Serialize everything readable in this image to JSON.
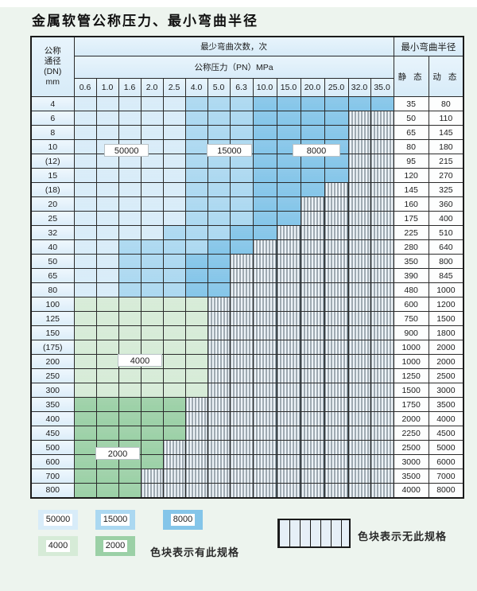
{
  "title": "金属软管公称压力、最小弯曲半径",
  "colors": {
    "s50": "#d8ecf9",
    "s15": "#abd8f1",
    "s8": "#84c5e9",
    "s4": "#d6ebd7",
    "s2": "#9bd0a6",
    "hatch_bg": "#edf3f8",
    "header_bg": "#ddeefa",
    "grid": "#2b2b2b"
  },
  "table": {
    "header": {
      "dn_label_lines": [
        "公称",
        "通径",
        "(DN)",
        "mm"
      ],
      "cycles_label": "最少弯曲次数，次",
      "radius_label": "最小弯曲半径",
      "pressure_label": "公称压力（PN）MPa",
      "static_label": "静 态",
      "dynamic_label": "动 态",
      "pressure_cols": [
        "0.6",
        "1.0",
        "1.6",
        "2.0",
        "2.5",
        "4.0",
        "5.0",
        "6.3",
        "10.0",
        "15.0",
        "20.0",
        "25.0",
        "32.0",
        "35.0"
      ]
    },
    "rows": [
      {
        "dn": "4",
        "static": "35",
        "dynamic": "80",
        "bands": [
          [
            "s50",
            0,
            4
          ],
          [
            "s15",
            5,
            7
          ],
          [
            "s8",
            8,
            13
          ]
        ],
        "hatch_from": -1
      },
      {
        "dn": "6",
        "static": "50",
        "dynamic": "110",
        "bands": [
          [
            "s50",
            0,
            4
          ],
          [
            "s15",
            5,
            7
          ],
          [
            "s8",
            8,
            11
          ]
        ],
        "hatch_from": 12
      },
      {
        "dn": "8",
        "static": "65",
        "dynamic": "145",
        "bands": [
          [
            "s50",
            0,
            4
          ],
          [
            "s15",
            5,
            7
          ],
          [
            "s8",
            8,
            11
          ]
        ],
        "hatch_from": 12
      },
      {
        "dn": "10",
        "static": "80",
        "dynamic": "180",
        "bands": [
          [
            "s50",
            0,
            4
          ],
          [
            "s15",
            5,
            7
          ],
          [
            "s8",
            8,
            11
          ]
        ],
        "hatch_from": 12
      },
      {
        "dn": "(12)",
        "static": "95",
        "dynamic": "215",
        "bands": [
          [
            "s50",
            0,
            4
          ],
          [
            "s15",
            5,
            7
          ],
          [
            "s8",
            8,
            11
          ]
        ],
        "hatch_from": 12
      },
      {
        "dn": "15",
        "static": "120",
        "dynamic": "270",
        "bands": [
          [
            "s50",
            0,
            4
          ],
          [
            "s15",
            5,
            7
          ],
          [
            "s8",
            8,
            11
          ]
        ],
        "hatch_from": 12
      },
      {
        "dn": "(18)",
        "static": "145",
        "dynamic": "325",
        "bands": [
          [
            "s50",
            0,
            4
          ],
          [
            "s15",
            5,
            7
          ],
          [
            "s8",
            8,
            10
          ]
        ],
        "hatch_from": 11
      },
      {
        "dn": "20",
        "static": "160",
        "dynamic": "360",
        "bands": [
          [
            "s50",
            0,
            4
          ],
          [
            "s15",
            5,
            7
          ],
          [
            "s8",
            8,
            9
          ]
        ],
        "hatch_from": 10
      },
      {
        "dn": "25",
        "static": "175",
        "dynamic": "400",
        "bands": [
          [
            "s50",
            0,
            4
          ],
          [
            "s15",
            5,
            7
          ],
          [
            "s8",
            8,
            9
          ]
        ],
        "hatch_from": 10
      },
      {
        "dn": "32",
        "static": "225",
        "dynamic": "510",
        "bands": [
          [
            "s50",
            0,
            3
          ],
          [
            "s15",
            4,
            6
          ],
          [
            "s8",
            7,
            8
          ]
        ],
        "hatch_from": 9
      },
      {
        "dn": "40",
        "static": "280",
        "dynamic": "640",
        "bands": [
          [
            "s50",
            0,
            1
          ],
          [
            "s15",
            2,
            5
          ],
          [
            "s8",
            6,
            7
          ]
        ],
        "hatch_from": 8
      },
      {
        "dn": "50",
        "static": "350",
        "dynamic": "800",
        "bands": [
          [
            "s50",
            0,
            1
          ],
          [
            "s15",
            2,
            4
          ],
          [
            "s8",
            5,
            6
          ]
        ],
        "hatch_from": 7
      },
      {
        "dn": "65",
        "static": "390",
        "dynamic": "845",
        "bands": [
          [
            "s50",
            0,
            1
          ],
          [
            "s15",
            2,
            4
          ],
          [
            "s8",
            5,
            6
          ]
        ],
        "hatch_from": 7
      },
      {
        "dn": "80",
        "static": "480",
        "dynamic": "1000",
        "bands": [
          [
            "s50",
            0,
            1
          ],
          [
            "s15",
            2,
            4
          ],
          [
            "s8",
            5,
            6
          ]
        ],
        "hatch_from": 7
      },
      {
        "dn": "100",
        "static": "600",
        "dynamic": "1200",
        "bands": [
          [
            "s4",
            0,
            5
          ]
        ],
        "hatch_from": 6
      },
      {
        "dn": "125",
        "static": "750",
        "dynamic": "1500",
        "bands": [
          [
            "s4",
            0,
            5
          ]
        ],
        "hatch_from": 6
      },
      {
        "dn": "150",
        "static": "900",
        "dynamic": "1800",
        "bands": [
          [
            "s4",
            0,
            5
          ]
        ],
        "hatch_from": 6
      },
      {
        "dn": "(175)",
        "static": "1000",
        "dynamic": "2000",
        "bands": [
          [
            "s4",
            0,
            5
          ]
        ],
        "hatch_from": 6
      },
      {
        "dn": "200",
        "static": "1000",
        "dynamic": "2000",
        "bands": [
          [
            "s4",
            0,
            5
          ]
        ],
        "hatch_from": 6
      },
      {
        "dn": "250",
        "static": "1250",
        "dynamic": "2500",
        "bands": [
          [
            "s4",
            0,
            5
          ]
        ],
        "hatch_from": 6
      },
      {
        "dn": "300",
        "static": "1500",
        "dynamic": "3000",
        "bands": [
          [
            "s4",
            0,
            5
          ]
        ],
        "hatch_from": 6
      },
      {
        "dn": "350",
        "static": "1750",
        "dynamic": "3500",
        "bands": [
          [
            "s2",
            0,
            4
          ]
        ],
        "hatch_from": 5
      },
      {
        "dn": "400",
        "static": "2000",
        "dynamic": "4000",
        "bands": [
          [
            "s2",
            0,
            4
          ]
        ],
        "hatch_from": 5
      },
      {
        "dn": "450",
        "static": "2250",
        "dynamic": "4500",
        "bands": [
          [
            "s2",
            0,
            4
          ]
        ],
        "hatch_from": 5
      },
      {
        "dn": "500",
        "static": "2500",
        "dynamic": "5000",
        "bands": [
          [
            "s2",
            0,
            3
          ]
        ],
        "hatch_from": 4
      },
      {
        "dn": "600",
        "static": "3000",
        "dynamic": "6000",
        "bands": [
          [
            "s2",
            0,
            3
          ]
        ],
        "hatch_from": 4
      },
      {
        "dn": "700",
        "static": "3500",
        "dynamic": "7000",
        "bands": [
          [
            "s2",
            0,
            2
          ]
        ],
        "hatch_from": 3
      },
      {
        "dn": "800",
        "static": "4000",
        "dynamic": "8000",
        "bands": [
          [
            "s2",
            0,
            2
          ]
        ],
        "hatch_from": 3
      }
    ],
    "region_labels": [
      {
        "text": "50000",
        "row_index": 3,
        "col": 2,
        "span": 2,
        "hoffset": -0.6,
        "voffset": 0.35
      },
      {
        "text": "15000",
        "row_index": 3,
        "col": 6,
        "span": 2,
        "hoffset": 0,
        "voffset": 0.35
      },
      {
        "text": "8000",
        "row_index": 3,
        "col": 9,
        "span": 2,
        "hoffset": 0.7,
        "voffset": 0.35
      },
      {
        "text": "4000",
        "row_index": 18,
        "col": 2,
        "span": 2,
        "hoffset": 0,
        "voffset": 0
      },
      {
        "text": "2000",
        "row_index": 24,
        "col": 1,
        "span": 2,
        "hoffset": 0,
        "voffset": 0.5
      }
    ]
  },
  "legend": {
    "items": [
      {
        "label": "50000",
        "color_key": "s50"
      },
      {
        "label": "15000",
        "color_key": "s15"
      },
      {
        "label": "8000",
        "color_key": "s8"
      },
      {
        "label": "4000",
        "color_key": "s4"
      },
      {
        "label": "2000",
        "color_key": "s2"
      }
    ],
    "available_text": "色块表示有此规格",
    "unavailable_text": "色块表示无此规格"
  }
}
